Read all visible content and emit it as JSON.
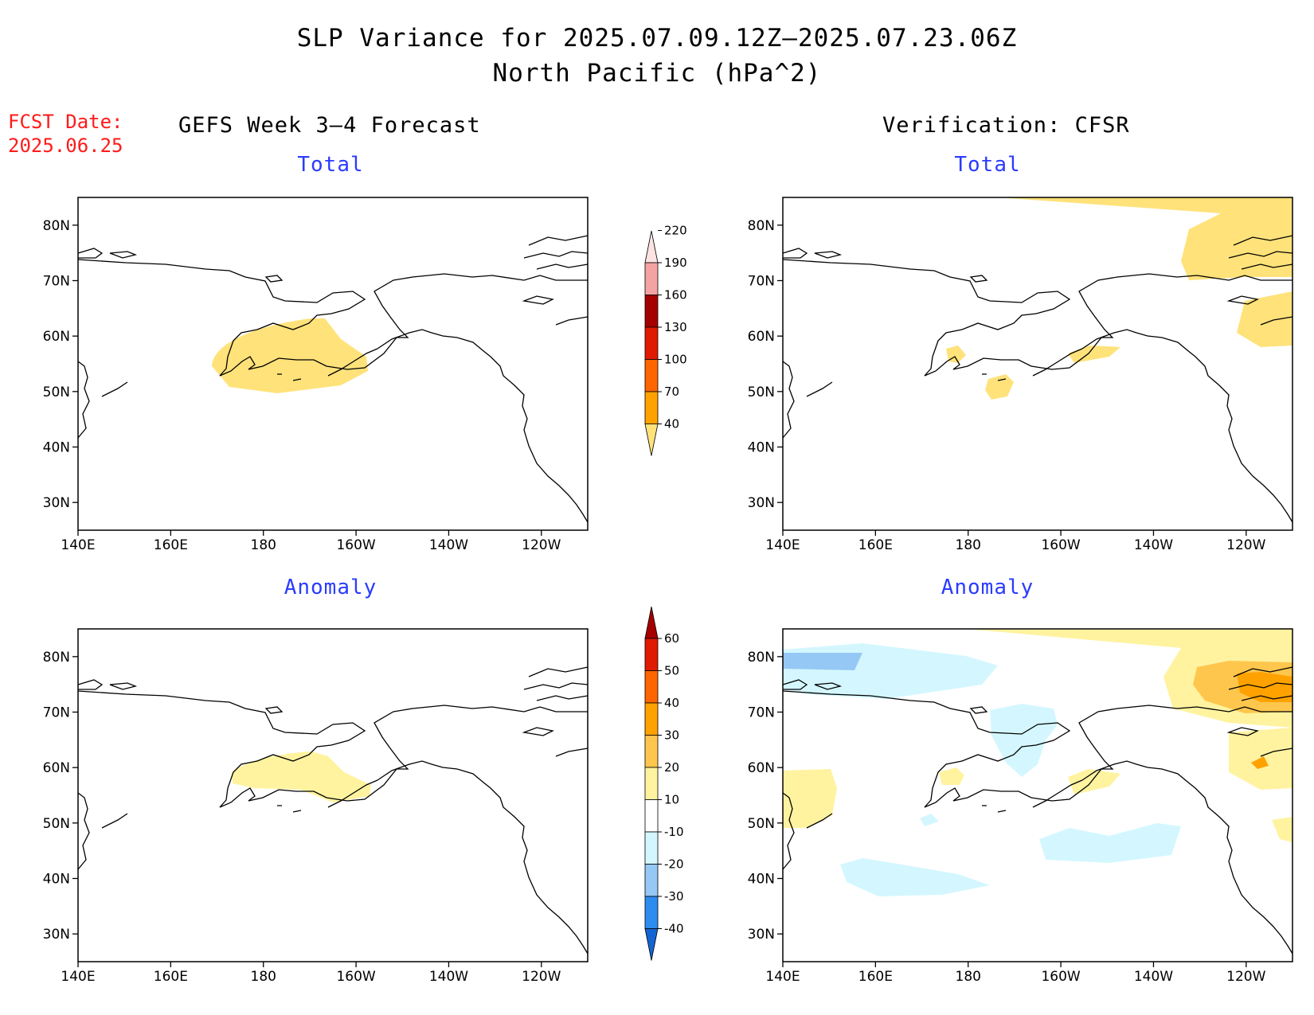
{
  "header": {
    "title_line1": "SLP Variance for 2025.07.09.12Z—2025.07.23.06Z",
    "title_line2": "North Pacific (hPa^2)",
    "fcst_label": "FCST Date:",
    "fcst_date": "2025.06.25",
    "left_column": "GEFS Week 3—4 Forecast",
    "right_column": "Verification: CFSR"
  },
  "panels": {
    "fcst_total": "Total",
    "obs_total": "Total",
    "fcst_anom": "Anomaly",
    "obs_anom": "Anomaly"
  },
  "axes": {
    "lat_ticks": [
      "80N",
      "70N",
      "60N",
      "50N",
      "40N",
      "30N"
    ],
    "lat_values": [
      80,
      70,
      60,
      50,
      40,
      30
    ],
    "lon_ticks": [
      "140E",
      "160E",
      "180",
      "160W",
      "140W",
      "120W"
    ],
    "lon_values": [
      140,
      160,
      180,
      200,
      220,
      240
    ],
    "lon_range": [
      140,
      250
    ],
    "lat_range": [
      25,
      85
    ]
  },
  "colorbars": {
    "total": {
      "levels": [
        "40",
        "70",
        "100",
        "130",
        "160",
        "190",
        "220"
      ],
      "colors": [
        "#ffe27a",
        "#ffa200",
        "#ff6600",
        "#e01a00",
        "#a50000",
        "#f4a3a3",
        "#fde2e2"
      ]
    },
    "anomaly": {
      "levels": [
        "-40",
        "-30",
        "-20",
        "-10",
        "10",
        "20",
        "30",
        "40",
        "50",
        "60"
      ],
      "colors": [
        "#1464d2",
        "#2d8cf0",
        "#96c8f5",
        "#d4f7ff",
        "#ffffff",
        "#fff3a0",
        "#ffc64d",
        "#ffa200",
        "#ff6600",
        "#e01a00",
        "#a50000"
      ]
    }
  },
  "colors": {
    "title_red": "#ff1a1a",
    "panel_title_blue": "#2a3bff"
  }
}
